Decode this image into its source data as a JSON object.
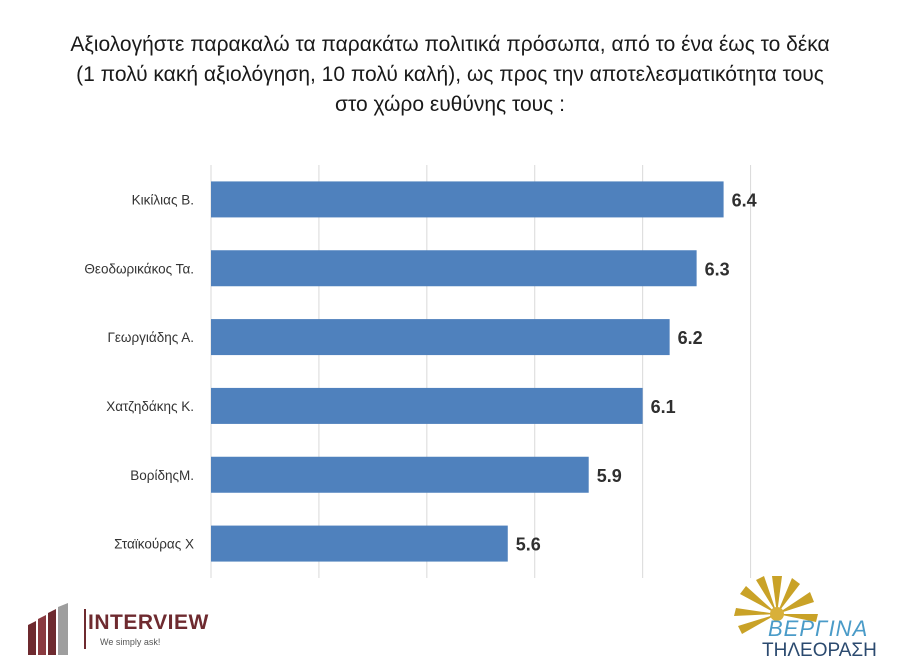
{
  "chart_data": {
    "type": "bar",
    "orientation": "horizontal",
    "title_lines": [
      "Αξιολογήστε παρακαλώ τα παρακάτω πολιτικά πρόσωπα, από το ένα έως το δέκα",
      "(1 πολύ κακή αξιολόγηση, 10 πολύ καλή), ως προς την αποτελεσματικότητα τους",
      "στο χώρο ευθύνης τους :"
    ],
    "categories": [
      "Κικίλιας Β.",
      "Θεοδωρικάκος Τα.",
      "Γεωργιάδης Α.",
      "Χατζηδάκης Κ.",
      "ΒορίδηςΜ.",
      "Σταϊκούρας Χ"
    ],
    "values": [
      6.4,
      6.3,
      6.2,
      6.1,
      5.9,
      5.6
    ],
    "value_labels": [
      "6.4",
      "6.3",
      "6.2",
      "6.1",
      "5.9",
      "5.6"
    ],
    "xlim": [
      4.5,
      6.85
    ],
    "gridlines": [
      4.5,
      4.9,
      5.3,
      5.7,
      6.1,
      6.5
    ],
    "grid": true,
    "bar_color": "#4f81bd"
  },
  "logos": {
    "interview": {
      "name": "INTERVIEW",
      "tagline": "We simply ask!",
      "color": "#6e2a2f"
    },
    "vergina": {
      "name": "ΒΕΡΓΙΝΑ",
      "subtitle": "ΤΗΛΕΟΡΑΣΗ"
    }
  }
}
